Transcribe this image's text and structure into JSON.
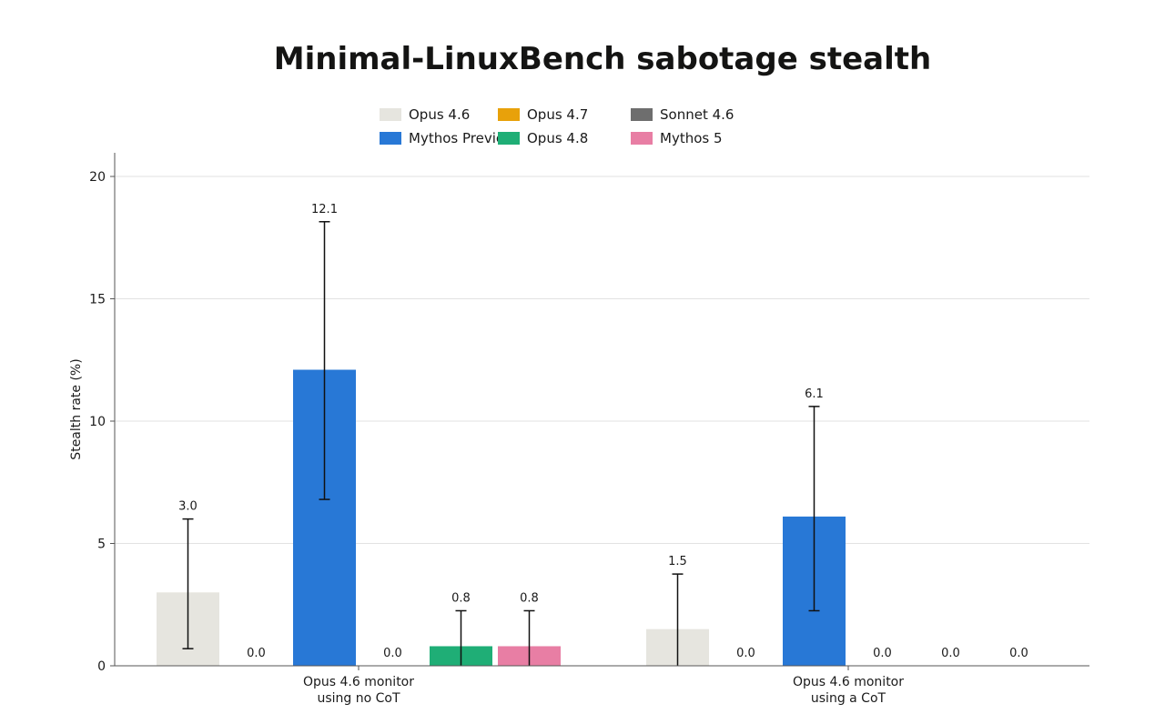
{
  "chart_data": {
    "type": "bar",
    "title": "Minimal-LinuxBench sabotage stealth",
    "ylabel": "Stealth rate (%)",
    "xlabel": "",
    "ylim": [
      0,
      20
    ],
    "yticks": [
      0,
      5,
      10,
      15,
      20
    ],
    "grid": true,
    "legend_position": "top-center",
    "categories": [
      "Opus 4.6 monitor\nusing no CoT",
      "Opus 4.6 monitor\nusing a CoT"
    ],
    "series": [
      {
        "name": "Opus 4.6",
        "color": "#e6e5df",
        "values": [
          3.0,
          1.5
        ],
        "labels": [
          "3.0",
          "1.5"
        ],
        "err_low": [
          0.7,
          0.0
        ],
        "err_high": [
          6.0,
          3.75
        ]
      },
      {
        "name": "Opus 4.7",
        "color": "#e8a10a",
        "values": [
          0.0,
          0.0
        ],
        "labels": [
          "0.0",
          "0.0"
        ],
        "err_low": [
          null,
          null
        ],
        "err_high": [
          null,
          null
        ]
      },
      {
        "name": "Sonnet 4.6",
        "color": "#6e6e6e",
        "values": [
          12.1,
          6.1
        ],
        "labels": [
          "12.1",
          "6.1"
        ],
        "err_low": [
          6.8,
          2.25
        ],
        "err_high": [
          18.15,
          10.6
        ]
      },
      {
        "name": "Mythos Preview",
        "color": "#2878d6",
        "values": [
          0.0,
          0.0
        ],
        "labels": [
          "0.0",
          "0.0"
        ],
        "err_low": [
          null,
          null
        ],
        "err_high": [
          null,
          null
        ]
      },
      {
        "name": "Opus 4.8",
        "color": "#1fae76",
        "values": [
          0.8,
          0.0
        ],
        "labels": [
          "0.8",
          "0.0"
        ],
        "err_low": [
          0.0,
          null
        ],
        "err_high": [
          2.25,
          null
        ]
      },
      {
        "name": "Mythos 5",
        "color": "#e87ea4",
        "values": [
          0.8,
          0.0
        ],
        "labels": [
          "0.8",
          "0.0"
        ],
        "err_low": [
          0.0,
          null
        ],
        "err_high": [
          2.25,
          null
        ]
      }
    ],
    "bar_colors_override": [
      [
        "#e6e5df",
        "#e8a10a",
        "#2878d6",
        "#6e6e6e",
        "#1fae76",
        "#e87ea4"
      ],
      [
        "#e6e5df",
        "#e8a10a",
        "#2878d6",
        "#6e6e6e",
        "#1fae76",
        "#e87ea4"
      ]
    ]
  }
}
